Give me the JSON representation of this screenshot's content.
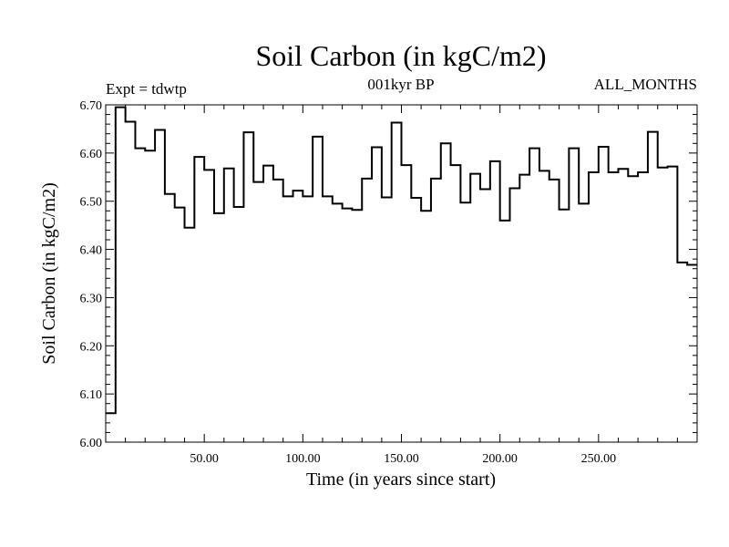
{
  "chart_data": {
    "type": "line",
    "style": "step",
    "title": "Soil Carbon (in kgC/m2)",
    "subtitle_left": "Expt = tdwtp",
    "subtitle_center": "001kyr BP",
    "subtitle_right": "ALL_MONTHS",
    "xlabel": "Time (in years since start)",
    "ylabel": "Soil Carbon (in kgC/m2)",
    "xlim": [
      0,
      300
    ],
    "ylim": [
      6.0,
      6.7
    ],
    "xticks": [
      50,
      100,
      150,
      200,
      250
    ],
    "xtick_labels": [
      "50.00",
      "100.00",
      "150.00",
      "200.00",
      "250.00"
    ],
    "yticks": [
      6.0,
      6.1,
      6.2,
      6.3,
      6.4,
      6.5,
      6.6,
      6.7
    ],
    "ytick_labels": [
      "6.00",
      "6.10",
      "6.20",
      "6.30",
      "6.40",
      "6.50",
      "6.60",
      "6.70"
    ],
    "series": [
      {
        "name": "Soil Carbon",
        "color": "#000000",
        "x": [
          0,
          5,
          10,
          15,
          20,
          25,
          30,
          35,
          40,
          45,
          50,
          55,
          60,
          65,
          70,
          75,
          80,
          85,
          90,
          95,
          100,
          105,
          110,
          115,
          120,
          125,
          130,
          135,
          140,
          145,
          150,
          155,
          160,
          165,
          170,
          175,
          180,
          185,
          190,
          195,
          200,
          205,
          210,
          215,
          220,
          225,
          230,
          235,
          240,
          245,
          250,
          255,
          260,
          265,
          270,
          275,
          280,
          285,
          290,
          295
        ],
        "y": [
          6.06,
          6.695,
          6.665,
          6.61,
          6.605,
          6.648,
          6.515,
          6.487,
          6.445,
          6.592,
          6.565,
          6.475,
          6.568,
          6.488,
          6.643,
          6.54,
          6.574,
          6.545,
          6.51,
          6.522,
          6.51,
          6.634,
          6.51,
          6.495,
          6.485,
          6.482,
          6.547,
          6.612,
          6.508,
          6.663,
          6.575,
          6.507,
          6.48,
          6.547,
          6.62,
          6.575,
          6.497,
          6.557,
          6.525,
          6.583,
          6.46,
          6.527,
          6.555,
          6.61,
          6.563,
          6.545,
          6.483,
          6.61,
          6.495,
          6.56,
          6.613,
          6.56,
          6.567,
          6.552,
          6.56,
          6.644,
          6.57,
          6.572,
          6.373,
          6.368
        ]
      }
    ]
  }
}
